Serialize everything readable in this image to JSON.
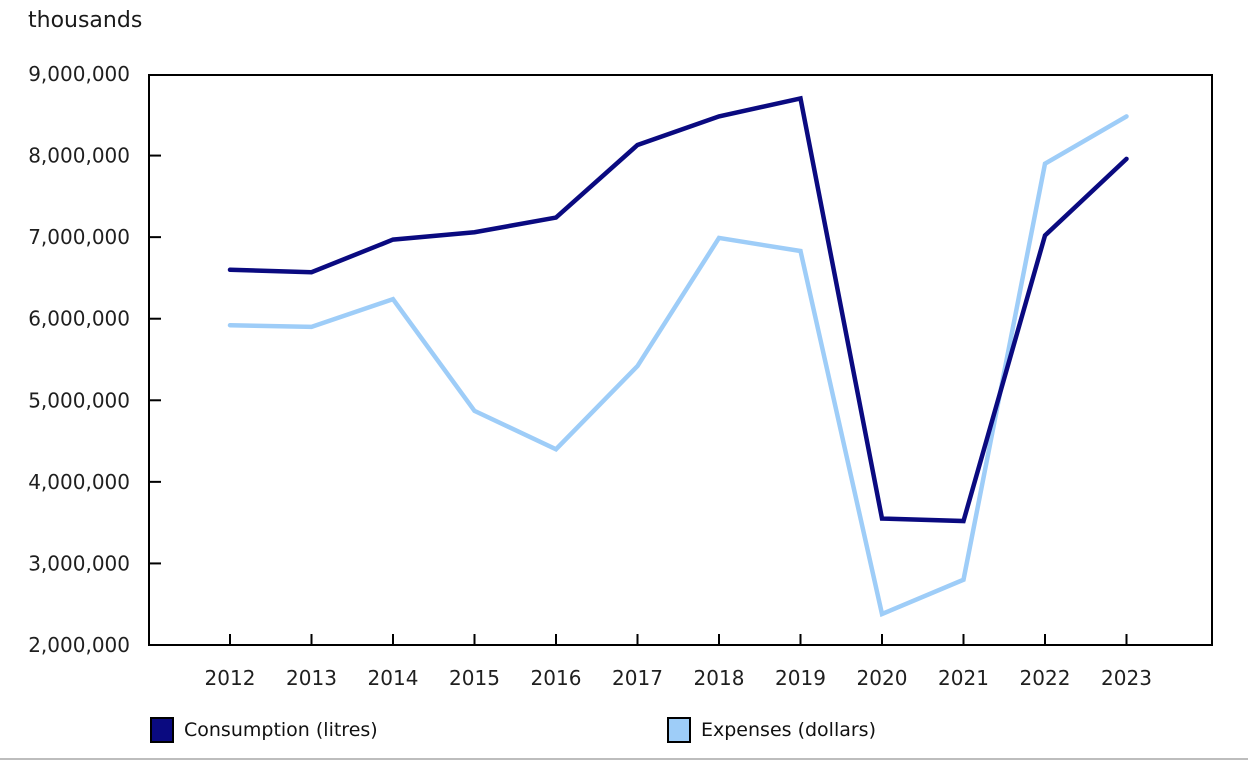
{
  "chart_data": {
    "type": "line",
    "title": "",
    "ylabel": "thousands",
    "xlabel": "",
    "categories": [
      "2012",
      "2013",
      "2014",
      "2015",
      "2016",
      "2017",
      "2018",
      "2019",
      "2020",
      "2021",
      "2022",
      "2023"
    ],
    "series": [
      {
        "name": "Consumption (litres)",
        "color": "#0a0a80",
        "values": [
          6600000,
          6570000,
          6970000,
          7060000,
          7240000,
          8130000,
          8480000,
          8700000,
          3550000,
          3520000,
          7020000,
          7960000
        ]
      },
      {
        "name": "Expenses (dollars)",
        "color": "#9ecdf8",
        "values": [
          5920000,
          5900000,
          6240000,
          4870000,
          4400000,
          5420000,
          6990000,
          6830000,
          2380000,
          2800000,
          7900000,
          8480000
        ]
      }
    ],
    "ylim": [
      2000000,
      9000000
    ],
    "ytick_step": 1000000,
    "ytick_labels": [
      "2,000,000",
      "3,000,000",
      "4,000,000",
      "5,000,000",
      "6,000,000",
      "7,000,000",
      "8,000,000",
      "9,000,000"
    ],
    "grid": false,
    "legend_position": "bottom",
    "axis_color": "#000000",
    "text_color": "#1f1f1f"
  }
}
